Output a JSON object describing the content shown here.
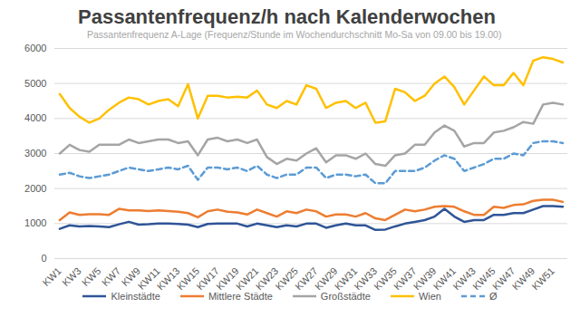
{
  "chart_data": {
    "type": "line",
    "title": "Passantenfrequenz/h nach Kalenderwochen",
    "subtitle": "Passantenfrequenz A-Lage (Frequenz/Stunde im Wochendurchschnitt Mo-Sa von 09.00 bis 19.00)",
    "categories": [
      "KW1",
      null,
      "KW3",
      null,
      "KW5",
      null,
      "KW7",
      null,
      "KW9",
      null,
      "KW11",
      null,
      "KW13",
      null,
      "KW15",
      null,
      "KW17",
      null,
      "KW19",
      null,
      "KW21",
      null,
      "KW23",
      null,
      "KW25",
      null,
      "KW27",
      null,
      "KW29",
      null,
      "KW31",
      null,
      "KW33",
      null,
      "KW35",
      null,
      "KW37",
      null,
      "KW39",
      null,
      "KW41",
      null,
      "KW43",
      null,
      "KW45",
      null,
      "KW47",
      null,
      "KW49",
      null,
      "KW51",
      null
    ],
    "series": [
      {
        "name": "Kleinstädte",
        "color": "#2f5597",
        "line_style": "solid",
        "values": [
          850,
          950,
          920,
          930,
          920,
          900,
          980,
          1050,
          970,
          980,
          1000,
          1000,
          990,
          970,
          900,
          990,
          1000,
          1000,
          1000,
          920,
          1000,
          950,
          900,
          950,
          920,
          1000,
          1000,
          880,
          950,
          1000,
          950,
          950,
          820,
          830,
          920,
          1000,
          1050,
          1100,
          1200,
          1420,
          1200,
          1050,
          1100,
          1100,
          1250,
          1250,
          1300,
          1300,
          1400,
          1500,
          1500,
          1480
        ]
      },
      {
        "name": "Mittlere Städte",
        "color": "#ed7d31",
        "line_style": "solid",
        "values": [
          1100,
          1320,
          1250,
          1270,
          1270,
          1250,
          1420,
          1380,
          1380,
          1360,
          1380,
          1360,
          1340,
          1300,
          1180,
          1350,
          1400,
          1340,
          1320,
          1260,
          1400,
          1300,
          1200,
          1350,
          1300,
          1400,
          1350,
          1200,
          1260,
          1260,
          1200,
          1300,
          1150,
          1100,
          1250,
          1400,
          1350,
          1400,
          1480,
          1500,
          1480,
          1350,
          1250,
          1250,
          1480,
          1450,
          1530,
          1550,
          1650,
          1680,
          1680,
          1620
        ]
      },
      {
        "name": "Großstädte",
        "color": "#a5a5a5",
        "line_style": "solid",
        "values": [
          3000,
          3250,
          3100,
          3050,
          3250,
          3250,
          3250,
          3400,
          3300,
          3350,
          3400,
          3400,
          3300,
          3350,
          2950,
          3400,
          3450,
          3350,
          3400,
          3300,
          3400,
          2900,
          2700,
          2850,
          2800,
          3000,
          3150,
          2750,
          2950,
          2950,
          2850,
          3000,
          2700,
          2650,
          2950,
          3000,
          3250,
          3250,
          3600,
          3800,
          3650,
          3200,
          3300,
          3300,
          3600,
          3650,
          3750,
          3900,
          3850,
          4400,
          4450,
          4400
        ]
      },
      {
        "name": "Wien",
        "color": "#ffc000",
        "line_style": "solid",
        "values": [
          4700,
          4300,
          4050,
          3880,
          4000,
          4250,
          4450,
          4600,
          4550,
          4400,
          4500,
          4550,
          4350,
          4980,
          4000,
          4650,
          4650,
          4600,
          4620,
          4600,
          4800,
          4400,
          4300,
          4500,
          4400,
          4950,
          4850,
          4300,
          4450,
          4500,
          4300,
          4450,
          3880,
          3920,
          4850,
          4750,
          4500,
          4650,
          5000,
          5200,
          4900,
          4400,
          4800,
          5200,
          4950,
          4950,
          5300,
          4950,
          5650,
          5750,
          5700,
          5600
        ]
      },
      {
        "name": "Ø",
        "color": "#5b9bd5",
        "line_style": "dashed",
        "values": [
          2400,
          2450,
          2350,
          2300,
          2350,
          2400,
          2500,
          2600,
          2550,
          2500,
          2550,
          2600,
          2550,
          2650,
          2250,
          2600,
          2600,
          2550,
          2600,
          2500,
          2650,
          2400,
          2300,
          2400,
          2400,
          2600,
          2600,
          2300,
          2400,
          2400,
          2350,
          2400,
          2150,
          2150,
          2500,
          2500,
          2500,
          2600,
          2800,
          2950,
          2850,
          2500,
          2600,
          2700,
          2850,
          2850,
          3000,
          2950,
          3300,
          3350,
          3350,
          3300
        ]
      }
    ],
    "ylim": [
      0,
      6000
    ],
    "yticks": [
      0,
      1000,
      2000,
      3000,
      4000,
      5000,
      6000
    ],
    "grid": true,
    "legend": "bottom"
  }
}
